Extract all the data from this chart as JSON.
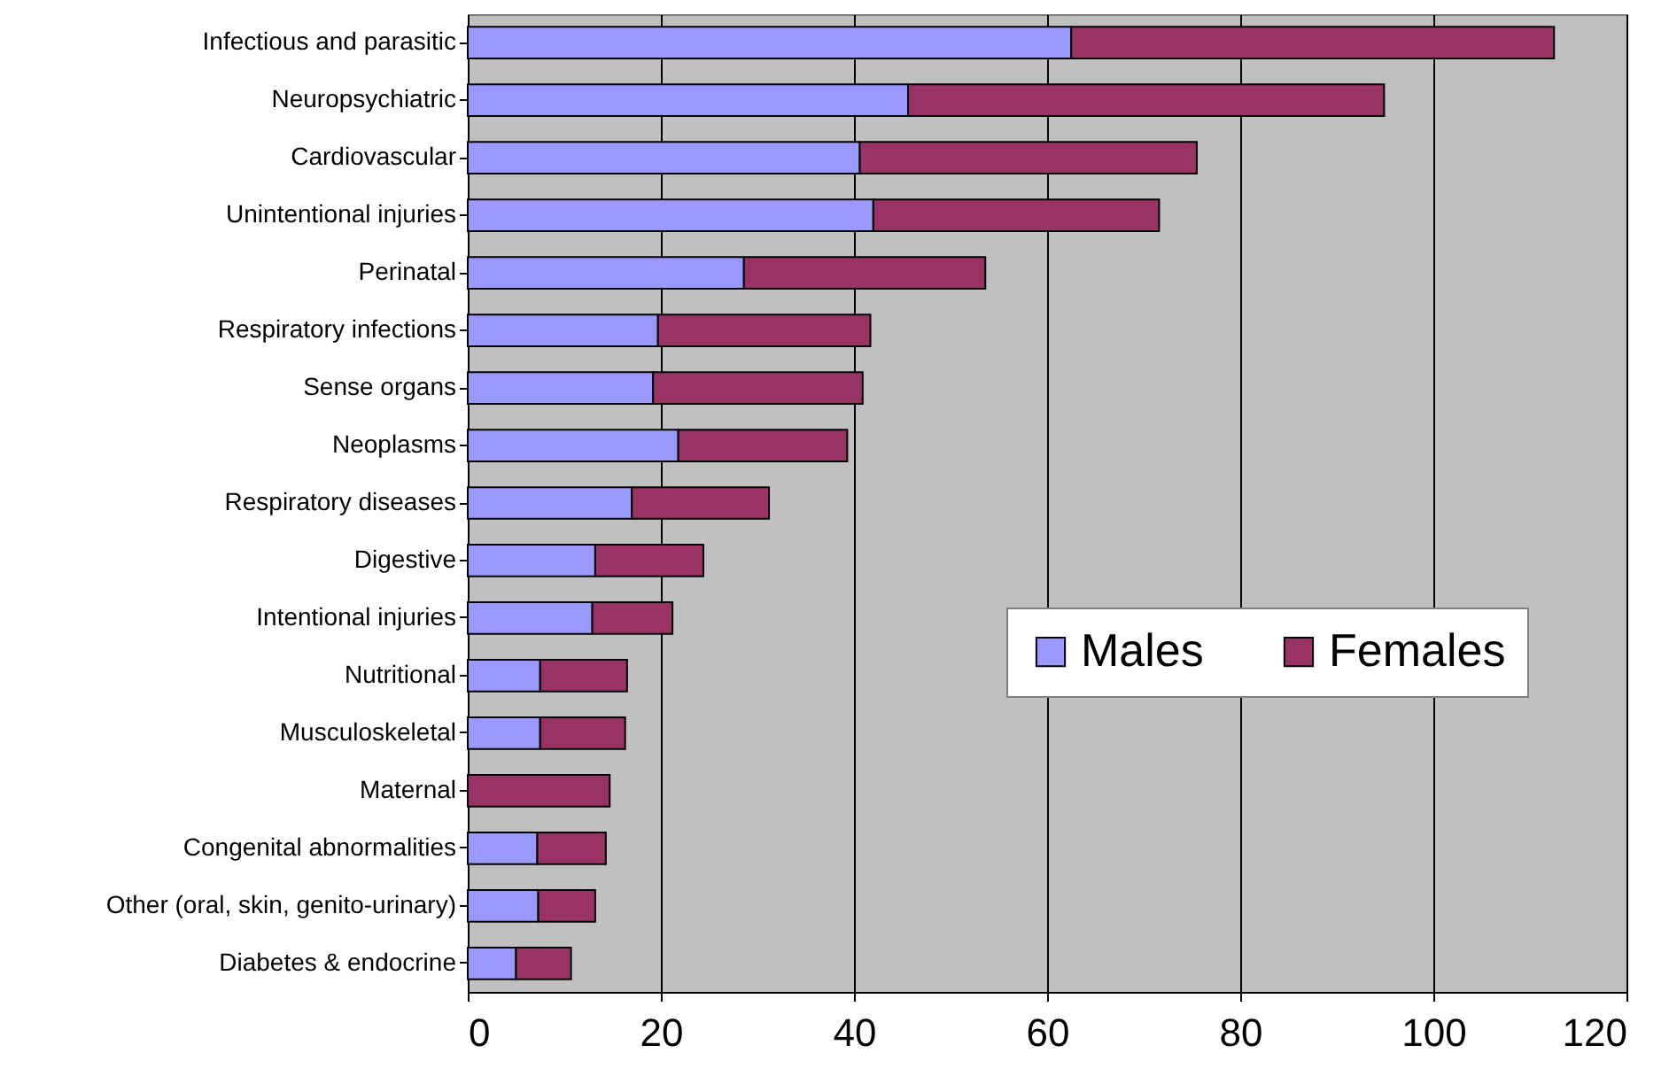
{
  "chart_data": {
    "type": "bar",
    "orientation": "horizontal",
    "stacked": true,
    "categories": [
      "Infectious and parasitic",
      "Neuropsychiatric",
      "Cardiovascular",
      "Unintentional injuries",
      "Perinatal",
      "Respiratory infections",
      "Sense organs",
      "Neoplasms",
      "Respiratory diseases",
      "Digestive",
      "Intentional injuries",
      "Nutritional",
      "Musculoskeletal",
      "Maternal",
      "Congenital abnormalities",
      "Other (oral, skin, genito-urinary)",
      "Diabetes & endocrine"
    ],
    "series": [
      {
        "name": "Males",
        "color": "#9999ff",
        "values": [
          62.5,
          45.6,
          40.6,
          42.0,
          28.6,
          19.7,
          19.2,
          21.8,
          17.0,
          13.2,
          12.9,
          7.5,
          7.5,
          0,
          7.2,
          7.3,
          5.0
        ]
      },
      {
        "name": "Females",
        "color": "#993366",
        "values": [
          50.0,
          49.3,
          34.9,
          29.6,
          25.0,
          22.0,
          21.7,
          17.5,
          14.2,
          11.2,
          8.3,
          9.0,
          8.8,
          14.7,
          7.1,
          5.9,
          5.7
        ]
      }
    ],
    "xlim": [
      0,
      120
    ],
    "xticks": [
      0,
      20,
      40,
      60,
      80,
      100,
      120
    ],
    "grid": "x",
    "legend": "right"
  }
}
